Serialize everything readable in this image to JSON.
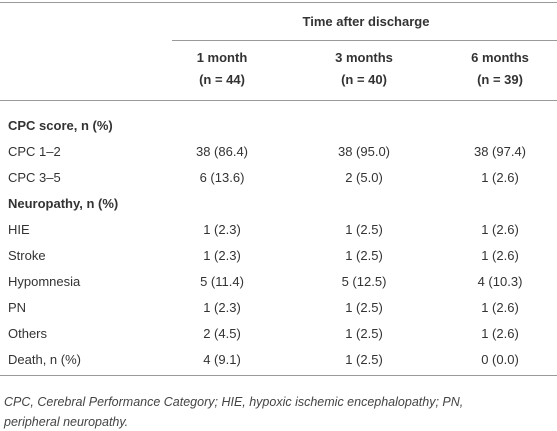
{
  "table": {
    "group_header": "Time after discharge",
    "columns": [
      {
        "label": "1 month",
        "n": "(n = 44)"
      },
      {
        "label": "3 months",
        "n": "(n = 40)"
      },
      {
        "label": "6 months",
        "n": "(n = 39)"
      }
    ],
    "sections": [
      {
        "title": "CPC score, n (%)",
        "rows": [
          [
            "CPC 1–2",
            "38 (86.4)",
            "38 (95.0)",
            "38 (97.4)"
          ],
          [
            "CPC 3–5",
            "6 (13.6)",
            "2 (5.0)",
            "1 (2.6)"
          ]
        ]
      },
      {
        "title": "Neuropathy, n (%)",
        "rows": [
          [
            "HIE",
            "1 (2.3)",
            "1 (2.5)",
            "1 (2.6)"
          ],
          [
            "Stroke",
            "1 (2.3)",
            "1 (2.5)",
            "1 (2.6)"
          ],
          [
            "Hypomnesia",
            "5 (11.4)",
            "5 (12.5)",
            "4 (10.3)"
          ],
          [
            "PN",
            "1 (2.3)",
            "1 (2.5)",
            "1 (2.6)"
          ],
          [
            "Others",
            "2 (4.5)",
            "1 (2.5)",
            "1 (2.6)"
          ],
          [
            "Death, n (%)",
            "4 (9.1)",
            "1 (2.5)",
            "0 (0.0)"
          ]
        ]
      }
    ]
  },
  "footnote": [
    "CPC, Cerebral Performance Category; HIE, hypoxic ischemic encephalopathy; PN,",
    "peripheral neuropathy."
  ]
}
